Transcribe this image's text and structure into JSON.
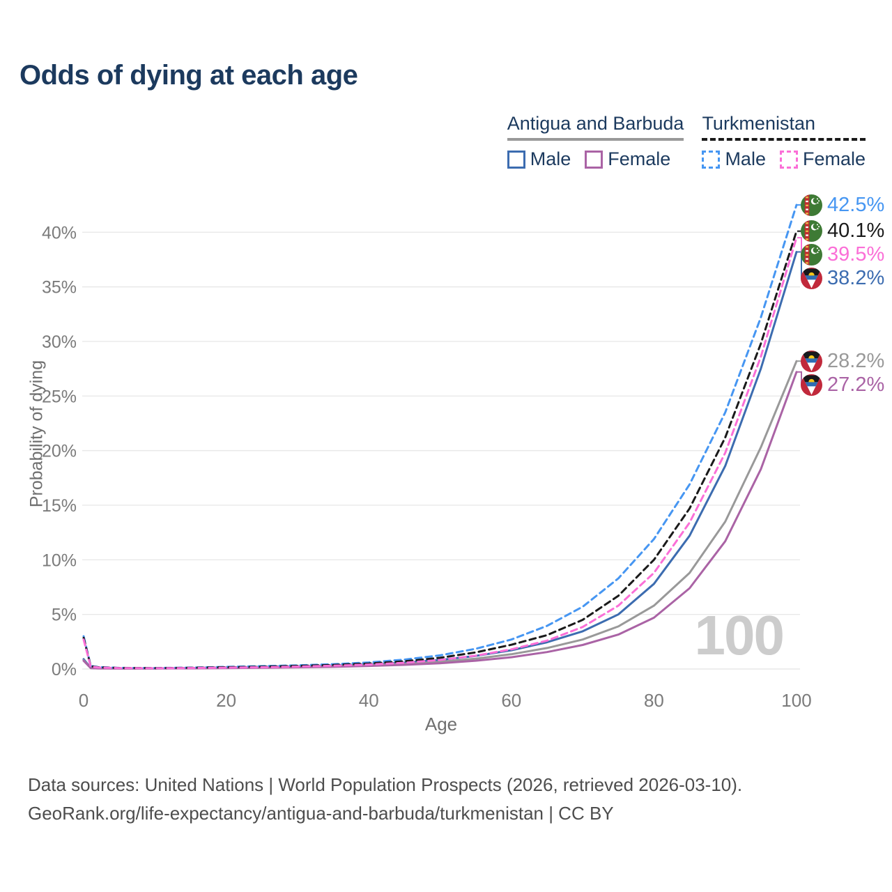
{
  "title": "Odds of dying at each age",
  "watermark": "100",
  "legend": {
    "groups": [
      {
        "country": "Antigua and Barbuda",
        "line_color": "#999999",
        "line_style": "solid",
        "entries": [
          {
            "label": "Male",
            "color": "#3c6cb0",
            "style": "solid"
          },
          {
            "label": "Female",
            "color": "#aa63a5",
            "style": "solid"
          }
        ]
      },
      {
        "country": "Turkmenistan",
        "line_color": "#1a1a1a",
        "line_style": "dashed",
        "entries": [
          {
            "label": "Male",
            "color": "#4696f2",
            "style": "dashed"
          },
          {
            "label": "Female",
            "color": "#fb6fd7",
            "style": "dashed"
          }
        ]
      }
    ]
  },
  "chart_data": {
    "type": "line",
    "title": "Odds of dying at each age",
    "xlabel": "Age",
    "ylabel": "Probability of dying",
    "xlim": [
      0,
      100
    ],
    "ylim": [
      0,
      43.4
    ],
    "grid": "horizontal-only",
    "legend_position": "top-right",
    "x_ticks": [
      0,
      20,
      40,
      60,
      80,
      100
    ],
    "y_ticks": [
      0,
      5,
      10,
      15,
      20,
      25,
      30,
      35,
      40
    ],
    "y_tick_labels": [
      "0%",
      "5%",
      "10%",
      "15%",
      "20%",
      "25%",
      "30%",
      "35%",
      "40%"
    ],
    "x": [
      0,
      1,
      2,
      5,
      10,
      15,
      20,
      25,
      30,
      35,
      40,
      45,
      50,
      55,
      60,
      65,
      70,
      75,
      80,
      85,
      90,
      95,
      100
    ],
    "series": [
      {
        "name": "Antigua and Barbuda Male",
        "color": "#3c6cb0",
        "dash": false,
        "flag": "antigua-and-barbuda",
        "end_label": "38.2%",
        "end_value": 38.2,
        "values": [
          0.9,
          0.1,
          0.07,
          0.06,
          0.06,
          0.09,
          0.14,
          0.19,
          0.24,
          0.32,
          0.43,
          0.59,
          0.83,
          1.2,
          1.72,
          2.45,
          3.45,
          5.0,
          7.8,
          12.2,
          18.6,
          27.5,
          38.2
        ]
      },
      {
        "name": "Antigua and Barbuda",
        "color": "#999999",
        "dash": false,
        "flag": "antigua-and-barbuda",
        "end_label": "28.2%",
        "end_value": 28.2,
        "values": [
          0.8,
          0.09,
          0.06,
          0.05,
          0.05,
          0.08,
          0.11,
          0.15,
          0.19,
          0.26,
          0.35,
          0.47,
          0.66,
          0.94,
          1.35,
          1.92,
          2.7,
          3.9,
          5.8,
          8.8,
          13.5,
          20.3,
          28.2
        ]
      },
      {
        "name": "Antigua and Barbuda Female",
        "color": "#aa63a5",
        "dash": false,
        "flag": "antigua-and-barbuda",
        "end_label": "27.2%",
        "end_value": 27.2,
        "values": [
          0.75,
          0.08,
          0.06,
          0.05,
          0.05,
          0.06,
          0.08,
          0.11,
          0.15,
          0.2,
          0.28,
          0.38,
          0.53,
          0.76,
          1.08,
          1.55,
          2.2,
          3.15,
          4.7,
          7.4,
          11.7,
          18.3,
          27.2
        ]
      },
      {
        "name": "Turkmenistan Male",
        "color": "#4696f2",
        "dash": true,
        "flag": "turkmenistan",
        "end_label": "42.5%",
        "end_value": 42.5,
        "values": [
          3.0,
          0.28,
          0.18,
          0.1,
          0.09,
          0.13,
          0.2,
          0.26,
          0.33,
          0.44,
          0.6,
          0.86,
          1.25,
          1.85,
          2.7,
          3.95,
          5.7,
          8.3,
          11.9,
          16.9,
          23.5,
          32.2,
          42.5
        ]
      },
      {
        "name": "Turkmenistan",
        "color": "#1a1a1a",
        "dash": true,
        "flag": "turkmenistan",
        "end_label": "40.1%",
        "end_value": 40.1,
        "values": [
          2.85,
          0.25,
          0.16,
          0.09,
          0.08,
          0.11,
          0.16,
          0.21,
          0.28,
          0.37,
          0.5,
          0.71,
          1.03,
          1.52,
          2.22,
          3.1,
          4.5,
          6.7,
          10.0,
          14.7,
          21.2,
          29.8,
          40.1
        ]
      },
      {
        "name": "Turkmenistan Female",
        "color": "#fb6fd7",
        "dash": true,
        "flag": "turkmenistan",
        "end_label": "39.5%",
        "end_value": 39.5,
        "values": [
          2.7,
          0.22,
          0.14,
          0.08,
          0.07,
          0.09,
          0.12,
          0.16,
          0.22,
          0.3,
          0.41,
          0.57,
          0.83,
          1.22,
          1.8,
          2.6,
          3.85,
          5.8,
          8.8,
          13.4,
          19.8,
          28.6,
          39.5
        ]
      }
    ]
  },
  "footer": {
    "line1": "Data sources: United Nations | World Population Prospects (2026, retrieved 2026-03-10).",
    "line2": "GeoRank.org/life-expectancy/antigua-and-barbuda/turkmenistan | CC BY"
  }
}
